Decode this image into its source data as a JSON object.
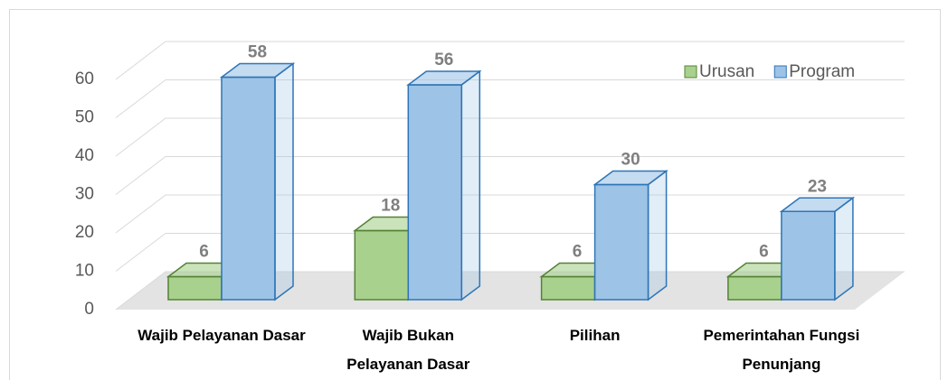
{
  "chart_data": {
    "type": "bar3d",
    "categories": [
      "Wajib Pelayanan Dasar",
      "Wajib Bukan Pelayanan Dasar",
      "Pilihan",
      "Pemerintahan Fungsi Penunjang"
    ],
    "series": [
      {
        "name": "Urusan",
        "color": "#a9d18e",
        "edge": "#548235",
        "values": [
          6,
          18,
          6,
          6
        ]
      },
      {
        "name": "Program",
        "color": "#9dc3e6",
        "edge": "#2e75b6",
        "values": [
          58,
          56,
          30,
          23
        ]
      }
    ],
    "ylim": [
      0,
      60
    ],
    "yticks": [
      0,
      10,
      20,
      30,
      40,
      50,
      60
    ],
    "grid": true,
    "legend": "top-right",
    "data_labels": true
  }
}
